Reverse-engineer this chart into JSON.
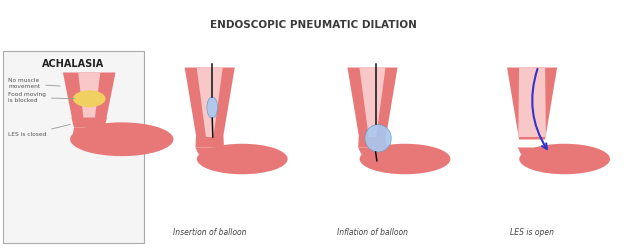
{
  "title": "ENDOSCOPIC PNEUMATIC DILATION",
  "title_fontsize": 7.5,
  "title_color": "#3a3a3a",
  "header_bg": "#cde0f5",
  "bg_color": "#ffffff",
  "esophagus_color": "#e87878",
  "inner_color": "#f8c8c8",
  "stomach_color": "#e87878",
  "food_color": "#f0d060",
  "balloon_color": "#a8c8f0",
  "scope_color": "#111111",
  "arrow_color": "#3333cc",
  "label_color": "#555555",
  "achalasia_box_bg": "#f5f5f5",
  "achalasia_box_border": "#aaaaaa",
  "captions": [
    "Insertion of balloon",
    "Inflation of balloon",
    "LES is open"
  ],
  "caption_fontsize": 5.5,
  "achalasia_title": "ACHALASIA",
  "achalasia_title_fontsize": 7,
  "labels": [
    "No muscle\nmovement",
    "Food moving\nis blocked",
    "LES is closed"
  ]
}
